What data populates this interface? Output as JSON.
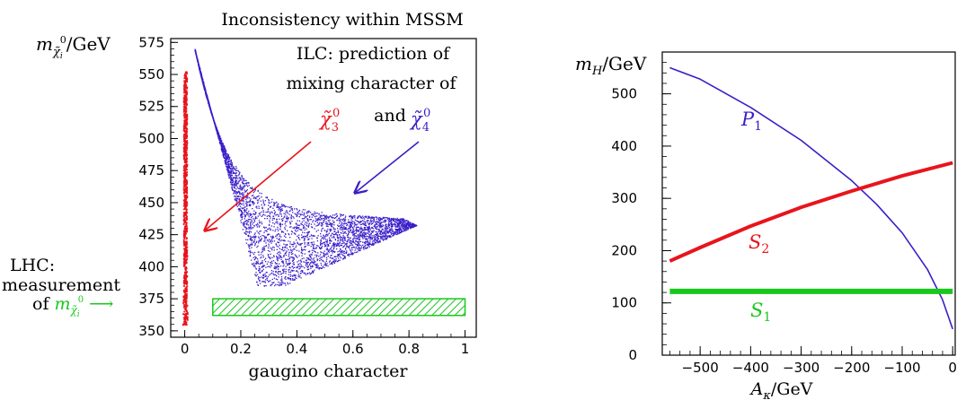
{
  "chart_data": [
    {
      "type": "scatter",
      "title": "Inconsistency within MSSM",
      "xlabel": "gaugino character",
      "ylabel": "m",
      "ylabel_sub": "χ̃",
      "ylabel_sub_i": "i",
      "ylabel_sup": "0",
      "ylabel_unit": "/GeV",
      "xlim": [
        -0.05,
        1.04
      ],
      "ylim": [
        345,
        578
      ],
      "xticks": [
        {
          "v": 0,
          "t": "0"
        },
        {
          "v": 0.2,
          "t": "0.2"
        },
        {
          "v": 0.4,
          "t": "0.4"
        },
        {
          "v": 0.6,
          "t": "0.6"
        },
        {
          "v": 0.8,
          "t": "0.8"
        },
        {
          "v": 1,
          "t": "1"
        }
      ],
      "yticks": [
        {
          "v": 350,
          "t": "350"
        },
        {
          "v": 375,
          "t": "375"
        },
        {
          "v": 400,
          "t": "400"
        },
        {
          "v": 425,
          "t": "425"
        },
        {
          "v": 450,
          "t": "450"
        },
        {
          "v": 475,
          "t": "475"
        },
        {
          "v": 500,
          "t": "500"
        },
        {
          "v": 525,
          "t": "525"
        },
        {
          "v": 550,
          "t": "550"
        },
        {
          "v": 575,
          "t": "575"
        }
      ],
      "annotation_lines": [
        "ILC: prediction of",
        "mixing character of"
      ],
      "annotation_and": "and",
      "chi3_label": "χ̃",
      "chi3_sub": "3",
      "chi3_sup": "0",
      "chi4_label": "χ̃",
      "chi4_sub": "4",
      "chi4_sup": "0",
      "lhc_lines": [
        "LHC:",
        "measurement",
        "of"
      ],
      "lhc_m": "m",
      "lhc_sub": "χ̃",
      "lhc_sub_i": "i",
      "lhc_sup": "0",
      "lhc_arrow": "⟶",
      "series": [
        {
          "color": "#e8141c",
          "x": [
            0.0,
            0.0,
            0.0
          ],
          "y": [
            355,
            452,
            553
          ]
        },
        {
          "color": "#3a1ec8",
          "x": [
            0.04,
            0.1,
            0.2,
            0.35,
            0.5,
            0.65,
            0.82
          ],
          "y": [
            568,
            500,
            440,
            410,
            410,
            420,
            432
          ]
        }
      ],
      "lhc_band": {
        "x": [
          0.1,
          1.0
        ],
        "y": [
          362,
          375
        ],
        "color": "#19c81c"
      },
      "colors": {
        "red": "#e8141c",
        "blue": "#3a1ec8",
        "green": "#19c81c"
      }
    },
    {
      "type": "line",
      "ylabel": "m",
      "ylabel_sub": "H",
      "ylabel_unit": "/GeV",
      "xlabel": "A",
      "xlabel_sub": "κ",
      "xlabel_unit": "/GeV",
      "xlim": [
        -575,
        5
      ],
      "ylim": [
        0,
        580
      ],
      "xticks": [
        {
          "v": -500,
          "t": "−500"
        },
        {
          "v": -400,
          "t": "−400"
        },
        {
          "v": -300,
          "t": "−300"
        },
        {
          "v": -200,
          "t": "−200"
        },
        {
          "v": -100,
          "t": "−100"
        },
        {
          "v": 0,
          "t": "0"
        }
      ],
      "yticks": [
        {
          "v": 0,
          "t": "0"
        },
        {
          "v": 100,
          "t": "100"
        },
        {
          "v": 200,
          "t": "200"
        },
        {
          "v": 300,
          "t": "300"
        },
        {
          "v": 400,
          "t": "400"
        },
        {
          "v": 500,
          "t": "500"
        }
      ],
      "series": [
        {
          "name": "P",
          "sub": "1",
          "color": "#3a1ec8",
          "x": [
            -560,
            -500,
            -400,
            -300,
            -200,
            -150,
            -100,
            -50,
            -20,
            0
          ],
          "y": [
            550,
            528,
            474,
            411,
            334,
            288,
            234,
            164,
            106,
            50
          ]
        },
        {
          "name": "S",
          "sub": "2",
          "color": "#e8141c",
          "x": [
            -560,
            -500,
            -400,
            -300,
            -200,
            -100,
            0
          ],
          "y": [
            180,
            206,
            247,
            283,
            314,
            343,
            368
          ]
        },
        {
          "name": "S",
          "sub": "1",
          "color": "#19c81c",
          "x": [
            -560,
            0
          ],
          "y": [
            122,
            122
          ]
        }
      ],
      "colors": {
        "blue": "#3a1ec8",
        "red": "#e8141c",
        "green": "#19c81c"
      }
    }
  ]
}
